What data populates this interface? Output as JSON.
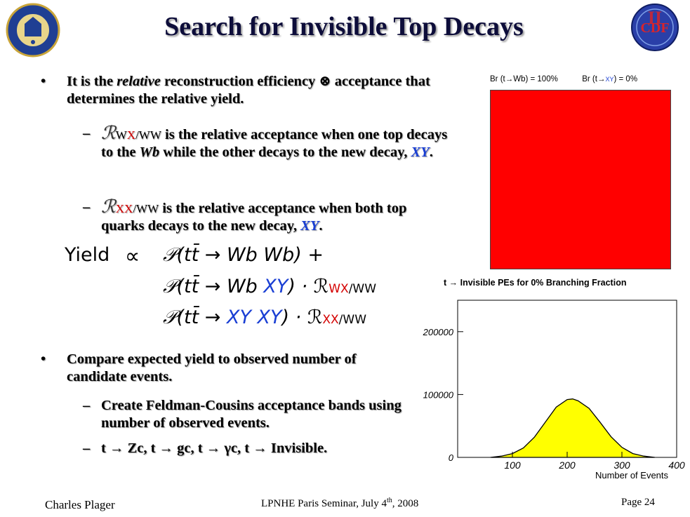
{
  "title": "Search for Invisible Top Decays",
  "bullet1": {
    "symbol": "•",
    "pre": "It is the ",
    "italic": "relative",
    "post": " reconstruction efficiency ⊗ acceptance that determines the relative yield."
  },
  "sub1": {
    "dash": "–",
    "R": "ℛ",
    "sub_black_a": "W",
    "sub_red": "X",
    "sub_black_b": "/WW",
    "text1": " is the relative acceptance when one top decays to the ",
    "wb": "Wb",
    "text2": " while the other decays to the new decay, ",
    "xy": "XY",
    "end": "."
  },
  "sub2": {
    "dash": "–",
    "R": "ℛ",
    "sub_red": "XX",
    "sub_black": "/WW",
    "text1": " is the relative acceptance when both top quarks decays to the new decay, ",
    "xy": "XY",
    "end": "."
  },
  "equation": {
    "yield": "Yield",
    "propto": "∝",
    "P": "𝒫",
    "line1": "(tt̄ → Wb Wb) +",
    "line2_a": "(tt̄ → Wb ",
    "line2_b": "XY",
    "line2_c": ") · ℛ",
    "line2_sub_red": "WX",
    "line2_sub": "/WW",
    "line3_a": "(tt̄ → ",
    "line3_b": "XY XY",
    "line3_c": ") · ℛ",
    "line3_sub_red": "XX",
    "line3_sub": "/WW"
  },
  "bullet2": {
    "symbol": "•",
    "text": "Compare expected yield to observed number of candidate events.",
    "subs": [
      {
        "dash": "–",
        "text": "Create Feldman-Cousins acceptance bands using number of observed events."
      },
      {
        "dash": "–",
        "text": "t → Zc, t → gc, t → γc, t → Invisible."
      }
    ]
  },
  "plot1": {
    "br_left": "Br (t→Wb) = 100%",
    "br_right_a": "Br (t→",
    "br_right_xy": "XY",
    "br_right_b": ") = 0%",
    "fill_color": "#ff0000"
  },
  "chart_data": {
    "type": "area",
    "title": "t → Invisible PEs for 0% Branching Fraction",
    "xlabel": "Number of Events",
    "ylabel": "",
    "xlim": [
      0,
      400
    ],
    "ylim": [
      0,
      250000
    ],
    "xticks": [
      100,
      200,
      300,
      400
    ],
    "yticks": [
      0,
      100000,
      200000
    ],
    "fill_color": "#ffff00",
    "series": [
      {
        "x": [
          60,
          80,
          100,
          120,
          140,
          160,
          180,
          200,
          210,
          220,
          240,
          260,
          280,
          300,
          320,
          340,
          360
        ],
        "values": [
          0,
          2000,
          6000,
          15000,
          32000,
          56000,
          80000,
          92000,
          93000,
          90000,
          78000,
          56000,
          33000,
          16000,
          6000,
          2000,
          0
        ]
      }
    ]
  },
  "footer": {
    "author": "Charles Plager",
    "seminar_a": "LPNHE Paris Seminar, July 4",
    "seminar_sup": "th",
    "seminar_b": ", 2008",
    "page": "Page 24"
  }
}
